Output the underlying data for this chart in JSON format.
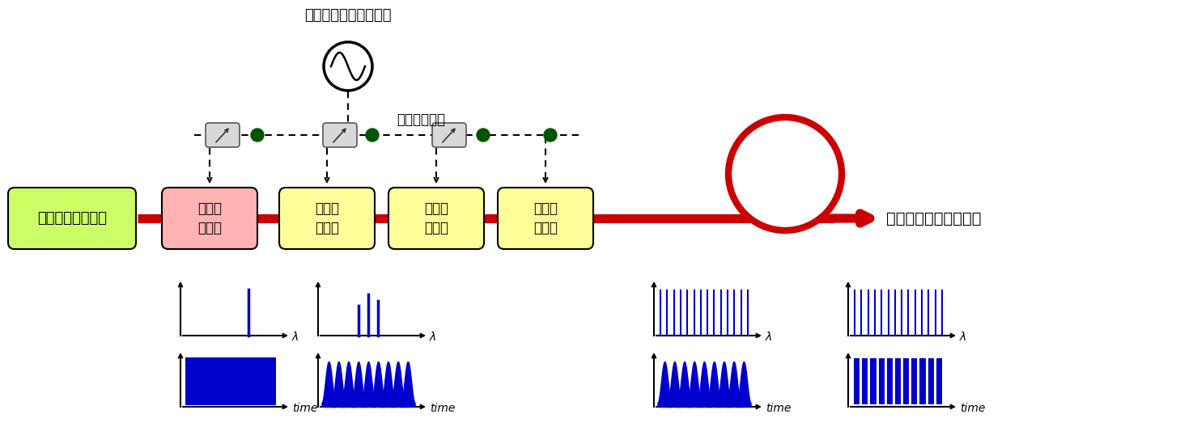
{
  "bg_color": "#ffffff",
  "laser_label": "連続発振レーザー",
  "laser_color": "#ccff66",
  "intensity_mod_label": "光強度\n変調器",
  "intensity_mod_color": "#ffb3b3",
  "phase_mod_label": "光位相\n変調器",
  "phase_mod_color": "#ffff99",
  "fiber_label": "分散補償用ファイバー",
  "microwave_label": "マイクロ波信号発生器",
  "phase_shifter_label": "位相シフター",
  "red_color": "#cc0000",
  "blue_color": "#0000cc",
  "green_color": "#005500"
}
